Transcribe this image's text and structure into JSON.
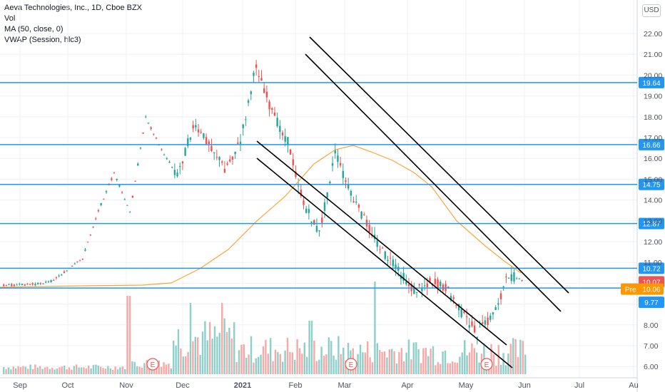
{
  "legend": {
    "title": "Aeva Technologies, Inc., 1D, Cboe BZX",
    "vol": "Vol",
    "ma": "MA (50, close, 0)",
    "vwap": "VWAP (Session, hlc3)"
  },
  "currency_button": "USD",
  "colors": {
    "up": "#26a69a",
    "down": "#ef5350",
    "vol_up": "#8fcfc9",
    "vol_down": "#f7a9a7",
    "ma": "#f7a738",
    "hline": "#2196f3",
    "channel": "#000000",
    "grid": "#eef0f3",
    "axis_text": "#50535e",
    "pre_bg": "#ff9800"
  },
  "chart_data": {
    "type": "candlestick",
    "y_axis_ticks": [
      "22.00",
      "21.00",
      "20.00",
      "19.00",
      "18.00",
      "17.00",
      "16.00",
      "15.00",
      "14.00",
      "13.00",
      "12.00",
      "11.00",
      "10.00",
      "9.00",
      "8.00",
      "7.00",
      "6.00"
    ],
    "x_axis_ticks": [
      "Sep",
      "Oct",
      "Nov",
      "Dec",
      "2021",
      "Feb",
      "Mar",
      "Apr",
      "May",
      "Jun",
      "Jul",
      "Au"
    ],
    "horizontal_levels": [
      {
        "value": 19.64,
        "label": "19.64"
      },
      {
        "value": 16.66,
        "label": "16.66"
      },
      {
        "value": 14.75,
        "label": "14.75"
      },
      {
        "value": 12.87,
        "label": "12.87"
      },
      {
        "value": 10.72,
        "label": "10.72"
      },
      {
        "value": 9.77,
        "label": "9.77"
      }
    ],
    "last_price": {
      "value": 10.07,
      "label": "10.07"
    },
    "pre_price": {
      "value": 10.06,
      "label": "10.06",
      "tag": "Pre"
    },
    "earnings_markers": [
      {
        "month": "Nov",
        "label": "E"
      },
      {
        "month": "Feb/Mar",
        "label": "E"
      },
      {
        "month": "May",
        "label": "E"
      }
    ],
    "price_points": [
      [
        "Sep",
        9.9
      ],
      [
        "Oct",
        9.92
      ],
      [
        "Nov",
        9.95
      ],
      [
        "Nov",
        10.1
      ],
      [
        "Dec",
        10.6
      ],
      [
        "Dec",
        11.2
      ],
      [
        "Dec",
        13.5
      ],
      [
        "Dec",
        15.3
      ],
      [
        "Dec",
        13.4
      ],
      [
        "Dec",
        18.0
      ],
      [
        "Dec",
        16.4
      ],
      [
        "Dec",
        15.2
      ],
      [
        "2021",
        17.5
      ],
      [
        "2021",
        16.8
      ],
      [
        "2021",
        15.5
      ],
      [
        "Feb",
        16.8
      ],
      [
        "Feb",
        20.5
      ],
      [
        "Feb",
        18.2
      ],
      [
        "Feb",
        16.8
      ],
      [
        "Mar",
        13.8
      ],
      [
        "Mar",
        12.4
      ],
      [
        "Mar",
        16.3
      ],
      [
        "Mar",
        14.2
      ],
      [
        "Mar",
        12.9
      ],
      [
        "Apr",
        11.5
      ],
      [
        "Apr",
        10.6
      ],
      [
        "Apr",
        9.6
      ],
      [
        "Apr",
        10.1
      ],
      [
        "May",
        9.8
      ],
      [
        "May",
        8.6
      ],
      [
        "May",
        7.6
      ],
      [
        "May",
        8.5
      ],
      [
        "Jun",
        10.4
      ],
      [
        "Jun",
        10.07
      ]
    ],
    "channel_lines": [
      {
        "from": [
          "Feb",
          21.9
        ],
        "to": [
          "Jul",
          9.9
        ]
      },
      {
        "from": [
          "Feb",
          21.1
        ],
        "to": [
          "Jul",
          8.6
        ]
      },
      {
        "from": [
          "Jan",
          16.9
        ],
        "to": [
          "May",
          7.0
        ]
      },
      {
        "from": [
          "Jan",
          16.0
        ],
        "to": [
          "May",
          6.0
        ]
      }
    ]
  }
}
